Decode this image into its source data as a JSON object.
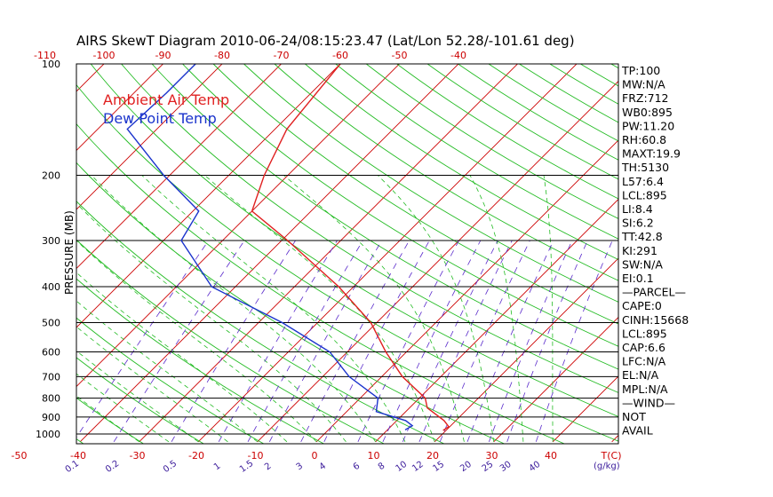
{
  "title": "AIRS SkewT Diagram 2010-06-24/08:15:23.47 (Lat/Lon 52.28/-101.61 deg)",
  "ylabel": "PRESSURE (MB)",
  "legend": [
    {
      "label": "Ambient Air Temp",
      "color": "#e02020"
    },
    {
      "label": "Dew Point Temp",
      "color": "#1a33cc"
    }
  ],
  "colors": {
    "temperature": "#e02020",
    "dewpoint": "#1a33cc",
    "isotherm": "#cc0000",
    "dry_adiabat": "#22bb22",
    "moist_adiabat": "#22bb22",
    "mixing_ratio": "#5a2acb",
    "isobar": "#000000"
  },
  "top_ticks": [
    "-120",
    "-110",
    "-100",
    "-90",
    "-80",
    "-70",
    "-60",
    "-50",
    "-40"
  ],
  "bottom_ticks": [
    "-50",
    "-40",
    "-30",
    "-20",
    "-10",
    "0",
    "10",
    "20",
    "30",
    "40"
  ],
  "bottom_unit": "T(C)",
  "mixing_ratio_labels": [
    "0.1",
    "0.2",
    "0.5",
    "1",
    "1.5",
    "2",
    "3",
    "4",
    "6",
    "8",
    "10",
    "12",
    "15",
    "20",
    "25",
    "30",
    "40"
  ],
  "mixing_ratio_unit": "(g/kg)",
  "indices": [
    "TP:100",
    "MW:N/A",
    "FRZ:712",
    "WB0:895",
    "PW:11.20",
    "RH:60.8",
    "MAXT:19.9",
    "TH:5130",
    "L57:6.4",
    "LCL:895",
    "LI:8.4",
    "SI:6.2",
    "TT:42.8",
    "KI:291",
    "SW:N/A",
    "EI:0.1",
    "—PARCEL—",
    "CAPE:0",
    "CINH:15668",
    "LCL:895",
    "CAP:6.6",
    "LFC:N/A",
    "EL:N/A",
    "MPL:N/A",
    "—WIND—",
    "NOT",
    "AVAIL"
  ],
  "chart_data": {
    "type": "line",
    "title": "AIRS SkewT Diagram 2010-06-24/08:15:23.47 (Lat/Lon 52.28/-101.61 deg)",
    "ylabel": "PRESSURE (MB)",
    "xlabel": "T(C)",
    "y_scale": "log",
    "ylim": [
      1050,
      100
    ],
    "xlim_surface": [
      -50,
      40
    ],
    "pressure_ticks": [
      "100",
      "200",
      "300",
      "400",
      "500",
      "600",
      "700",
      "800",
      "900",
      "1000"
    ],
    "legend_position": "top-left",
    "series": [
      {
        "name": "Ambient Air Temp",
        "points": [
          {
            "p": 978,
            "t": 19.5
          },
          {
            "p": 955,
            "t": 19.8
          },
          {
            "p": 920,
            "t": 18.0
          },
          {
            "p": 850,
            "t": 13.0
          },
          {
            "p": 800,
            "t": 11.0
          },
          {
            "p": 700,
            "t": 3.5
          },
          {
            "p": 600,
            "t": -3.5
          },
          {
            "p": 500,
            "t": -11.0
          },
          {
            "p": 400,
            "t": -22.5
          },
          {
            "p": 300,
            "t": -39.0
          },
          {
            "p": 250,
            "t": -50.0
          },
          {
            "p": 200,
            "t": -54.0
          },
          {
            "p": 150,
            "t": -58.0
          },
          {
            "p": 100,
            "t": -60.0
          }
        ]
      },
      {
        "name": "Dew Point Temp",
        "points": [
          {
            "p": 975,
            "t": 13.0
          },
          {
            "p": 950,
            "t": 13.5
          },
          {
            "p": 920,
            "t": 11.5
          },
          {
            "p": 870,
            "t": 5.0
          },
          {
            "p": 800,
            "t": 3.0
          },
          {
            "p": 700,
            "t": -5.5
          },
          {
            "p": 600,
            "t": -13.0
          },
          {
            "p": 500,
            "t": -26.0
          },
          {
            "p": 400,
            "t": -44.0
          },
          {
            "p": 300,
            "t": -57.0
          },
          {
            "p": 250,
            "t": -59.0
          },
          {
            "p": 200,
            "t": -71.0
          },
          {
            "p": 150,
            "t": -85.0
          },
          {
            "p": 120,
            "t": -84.5
          },
          {
            "p": 100,
            "t": -84.5
          }
        ]
      }
    ]
  }
}
